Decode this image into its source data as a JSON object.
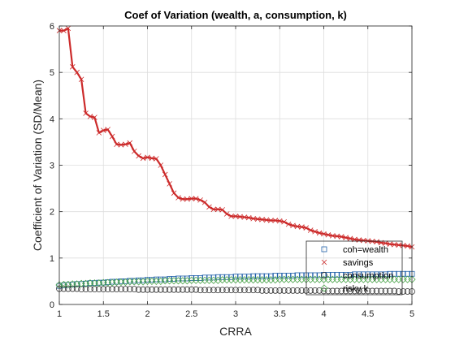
{
  "chart_data": {
    "type": "line",
    "title": "Coef of Variation (wealth, a, consumption, k)",
    "xlabel": "CRRA",
    "ylabel": "Coefficient of Variation (SD/Mean)",
    "xlim": [
      1,
      5
    ],
    "ylim": [
      0,
      6
    ],
    "xticks": [
      "1",
      "1.5",
      "2",
      "2.5",
      "3",
      "3.5",
      "4",
      "4.5",
      "5"
    ],
    "yticks": [
      "0",
      "1",
      "2",
      "3",
      "4",
      "5",
      "6"
    ],
    "grid": true,
    "legend_position": "bottom-right",
    "x": [
      1.0,
      1.05,
      1.1,
      1.15,
      1.2,
      1.25,
      1.3,
      1.35,
      1.4,
      1.45,
      1.5,
      1.55,
      1.6,
      1.65,
      1.7,
      1.75,
      1.8,
      1.85,
      1.9,
      1.95,
      2.0,
      2.05,
      2.1,
      2.15,
      2.2,
      2.25,
      2.3,
      2.35,
      2.4,
      2.45,
      2.5,
      2.55,
      2.6,
      2.65,
      2.7,
      2.75,
      2.8,
      2.85,
      2.9,
      2.95,
      3.0,
      3.05,
      3.1,
      3.15,
      3.2,
      3.25,
      3.3,
      3.35,
      3.4,
      3.45,
      3.5,
      3.55,
      3.6,
      3.65,
      3.7,
      3.75,
      3.8,
      3.85,
      3.9,
      3.95,
      4.0,
      4.05,
      4.1,
      4.15,
      4.2,
      4.25,
      4.3,
      4.35,
      4.4,
      4.45,
      4.5,
      4.55,
      4.6,
      4.65,
      4.7,
      4.75,
      4.8,
      4.85,
      4.9,
      4.95,
      5.0
    ],
    "series": [
      {
        "name": "coh=wealth",
        "color": "#1f5fa8",
        "marker": "square",
        "values": [
          0.4,
          0.41,
          0.42,
          0.43,
          0.44,
          0.44,
          0.45,
          0.46,
          0.46,
          0.47,
          0.47,
          0.48,
          0.49,
          0.49,
          0.5,
          0.5,
          0.51,
          0.51,
          0.52,
          0.52,
          0.53,
          0.53,
          0.54,
          0.54,
          0.54,
          0.55,
          0.55,
          0.56,
          0.56,
          0.56,
          0.57,
          0.57,
          0.57,
          0.58,
          0.58,
          0.58,
          0.59,
          0.59,
          0.59,
          0.59,
          0.6,
          0.6,
          0.6,
          0.6,
          0.61,
          0.61,
          0.61,
          0.61,
          0.61,
          0.62,
          0.62,
          0.62,
          0.62,
          0.62,
          0.63,
          0.63,
          0.63,
          0.63,
          0.63,
          0.63,
          0.64,
          0.64,
          0.64,
          0.64,
          0.64,
          0.64,
          0.64,
          0.65,
          0.65,
          0.65,
          0.65,
          0.65,
          0.65,
          0.65,
          0.65,
          0.66,
          0.66,
          0.66,
          0.66,
          0.66,
          0.66
        ]
      },
      {
        "name": "savings",
        "color": "#cc2b2b",
        "marker": "x",
        "values": [
          5.9,
          5.9,
          5.95,
          5.12,
          5.0,
          4.85,
          4.12,
          4.05,
          4.03,
          3.7,
          3.75,
          3.77,
          3.62,
          3.45,
          3.44,
          3.45,
          3.48,
          3.3,
          3.2,
          3.15,
          3.17,
          3.15,
          3.14,
          3.0,
          2.8,
          2.6,
          2.4,
          2.3,
          2.27,
          2.27,
          2.28,
          2.28,
          2.25,
          2.2,
          2.1,
          2.05,
          2.05,
          2.04,
          1.95,
          1.9,
          1.9,
          1.89,
          1.88,
          1.87,
          1.85,
          1.84,
          1.83,
          1.82,
          1.81,
          1.81,
          1.8,
          1.78,
          1.73,
          1.7,
          1.68,
          1.67,
          1.65,
          1.6,
          1.57,
          1.54,
          1.52,
          1.5,
          1.48,
          1.47,
          1.46,
          1.44,
          1.42,
          1.4,
          1.39,
          1.38,
          1.37,
          1.36,
          1.35,
          1.33,
          1.32,
          1.3,
          1.29,
          1.28,
          1.27,
          1.26,
          1.24
        ]
      },
      {
        "name": "consumption",
        "color": "#333333",
        "marker": "circle",
        "values": [
          0.34,
          0.34,
          0.34,
          0.34,
          0.34,
          0.33,
          0.33,
          0.33,
          0.33,
          0.33,
          0.33,
          0.33,
          0.33,
          0.33,
          0.33,
          0.33,
          0.33,
          0.33,
          0.32,
          0.32,
          0.32,
          0.32,
          0.32,
          0.32,
          0.32,
          0.32,
          0.32,
          0.32,
          0.32,
          0.32,
          0.32,
          0.32,
          0.31,
          0.31,
          0.31,
          0.31,
          0.31,
          0.31,
          0.31,
          0.31,
          0.31,
          0.31,
          0.31,
          0.31,
          0.31,
          0.31,
          0.3,
          0.3,
          0.3,
          0.3,
          0.3,
          0.3,
          0.3,
          0.3,
          0.3,
          0.3,
          0.3,
          0.3,
          0.3,
          0.3,
          0.29,
          0.29,
          0.29,
          0.29,
          0.29,
          0.29,
          0.29,
          0.29,
          0.29,
          0.29,
          0.29,
          0.29,
          0.29,
          0.29,
          0.29,
          0.29,
          0.29,
          0.28,
          0.28,
          0.28,
          0.28
        ]
      },
      {
        "name": "risky k",
        "color": "#4aa34a",
        "marker": "diamond",
        "values": [
          0.42,
          0.43,
          0.43,
          0.44,
          0.44,
          0.45,
          0.45,
          0.46,
          0.46,
          0.46,
          0.47,
          0.47,
          0.47,
          0.48,
          0.48,
          0.48,
          0.49,
          0.49,
          0.49,
          0.49,
          0.5,
          0.5,
          0.5,
          0.5,
          0.51,
          0.51,
          0.51,
          0.51,
          0.51,
          0.51,
          0.52,
          0.52,
          0.52,
          0.52,
          0.52,
          0.52,
          0.52,
          0.53,
          0.53,
          0.53,
          0.53,
          0.53,
          0.53,
          0.53,
          0.53,
          0.53,
          0.53,
          0.53,
          0.53,
          0.53,
          0.54,
          0.54,
          0.54,
          0.54,
          0.54,
          0.54,
          0.54,
          0.54,
          0.54,
          0.54,
          0.54,
          0.54,
          0.54,
          0.54,
          0.54,
          0.54,
          0.54,
          0.54,
          0.54,
          0.54,
          0.54,
          0.54,
          0.54,
          0.54,
          0.54,
          0.54,
          0.54,
          0.54,
          0.54,
          0.54,
          0.54
        ]
      }
    ]
  }
}
